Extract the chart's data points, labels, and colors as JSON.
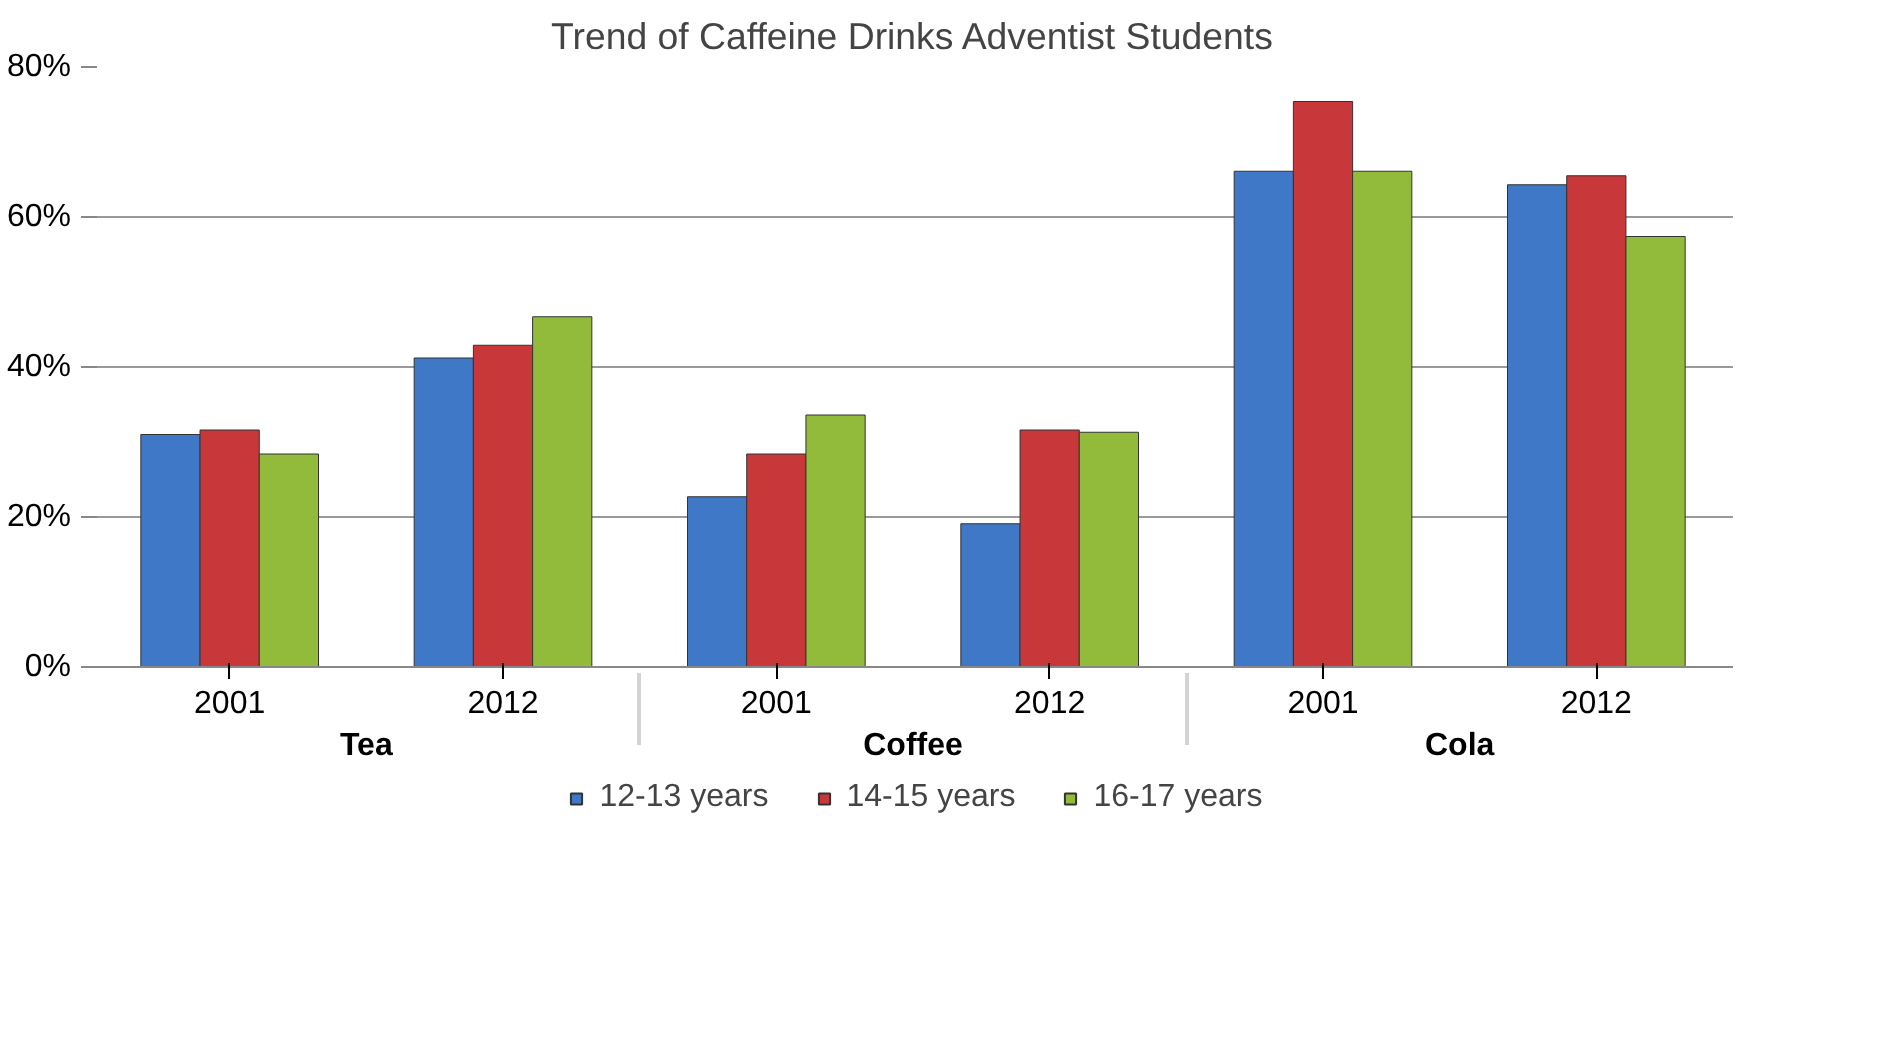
{
  "chart_data": {
    "type": "bar",
    "title": "Trend of Caffeine Drinks Adventist Students",
    "categories": [
      "2001",
      "2012",
      "2001",
      "2012",
      "2001",
      "2012"
    ],
    "annotations": [
      "Tea",
      "Coffee",
      "Cola"
    ],
    "series": [
      {
        "name": "12-13 years",
        "color": "#3f78c6",
        "values": [
          31.0,
          41.2,
          22.7,
          19.1,
          66.1,
          64.3
        ]
      },
      {
        "name": "14-15 years",
        "color": "#c8383a",
        "values": [
          31.6,
          42.9,
          28.4,
          31.6,
          75.4,
          65.5
        ]
      },
      {
        "name": "16-17 years",
        "color": "#92bb3c",
        "values": [
          28.4,
          46.7,
          33.6,
          31.3,
          66.1,
          57.4
        ]
      }
    ],
    "ylim": [
      0,
      80
    ],
    "yticks": [
      {
        "value": 0,
        "label": "0%"
      },
      {
        "value": 20,
        "label": "20%"
      },
      {
        "value": 40,
        "label": "40%"
      },
      {
        "value": 60,
        "label": "60%"
      },
      {
        "value": 80,
        "label": "80%"
      }
    ],
    "grid": "y",
    "legend": "bottom"
  }
}
